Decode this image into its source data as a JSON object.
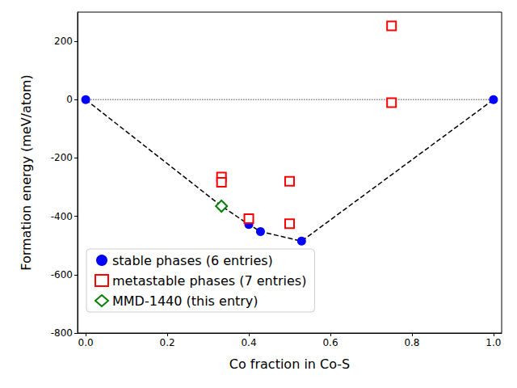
{
  "chart_data": {
    "type": "scatter",
    "x_label": "Co fraction in Co-S",
    "y_label": "Formation energy (meV/atom)",
    "xlim": [
      -0.02,
      1.02
    ],
    "xticks": [
      {
        "value": 0,
        "label": "0.0"
      },
      {
        "value": 0.2,
        "label": "0.2"
      },
      {
        "value": 0.4,
        "label": "0.4"
      },
      {
        "value": 0.6,
        "label": "0.6"
      },
      {
        "value": 0.8,
        "label": "0.8"
      },
      {
        "value": 1,
        "label": "1.0"
      }
    ],
    "ylim": [
      -800,
      300
    ],
    "yticks": [
      -800,
      -600,
      -400,
      -200,
      0,
      200
    ],
    "grid": false,
    "legend": "lower left",
    "series": [
      {
        "type": "line",
        "line_style": "dashed",
        "color": "#000000",
        "x": [
          0,
          0.333,
          0.4,
          0.4286,
          0.5294,
          1
        ],
        "values": [
          0,
          -365,
          -428,
          -452,
          -485,
          0
        ]
      },
      {
        "type": "line",
        "line_style": "dotted",
        "color": "#808080",
        "x": [
          0,
          1
        ],
        "values": [
          0,
          0
        ]
      },
      {
        "name": "stable phases (6 entries)",
        "type": "scatter",
        "marker": "circle",
        "color": "#0000ff",
        "x": [
          0,
          0.333,
          0.4,
          0.4286,
          0.5294,
          1
        ],
        "values": [
          0,
          -365,
          -428,
          -452,
          -485,
          0
        ]
      },
      {
        "name": "metastable phases (7 entries)",
        "type": "scatter",
        "marker": "open_square",
        "color": "#ff0000",
        "x": [
          0.333,
          0.333,
          0.4,
          0.5,
          0.5,
          0.75,
          0.75
        ],
        "values": [
          -265,
          -283,
          -408,
          -280,
          -425,
          253,
          -10
        ]
      },
      {
        "name": "MMD-1440 (this entry)",
        "type": "scatter",
        "marker": "open_diamond",
        "color": "#008000",
        "x": [
          0.333
        ],
        "values": [
          -365
        ]
      }
    ]
  }
}
